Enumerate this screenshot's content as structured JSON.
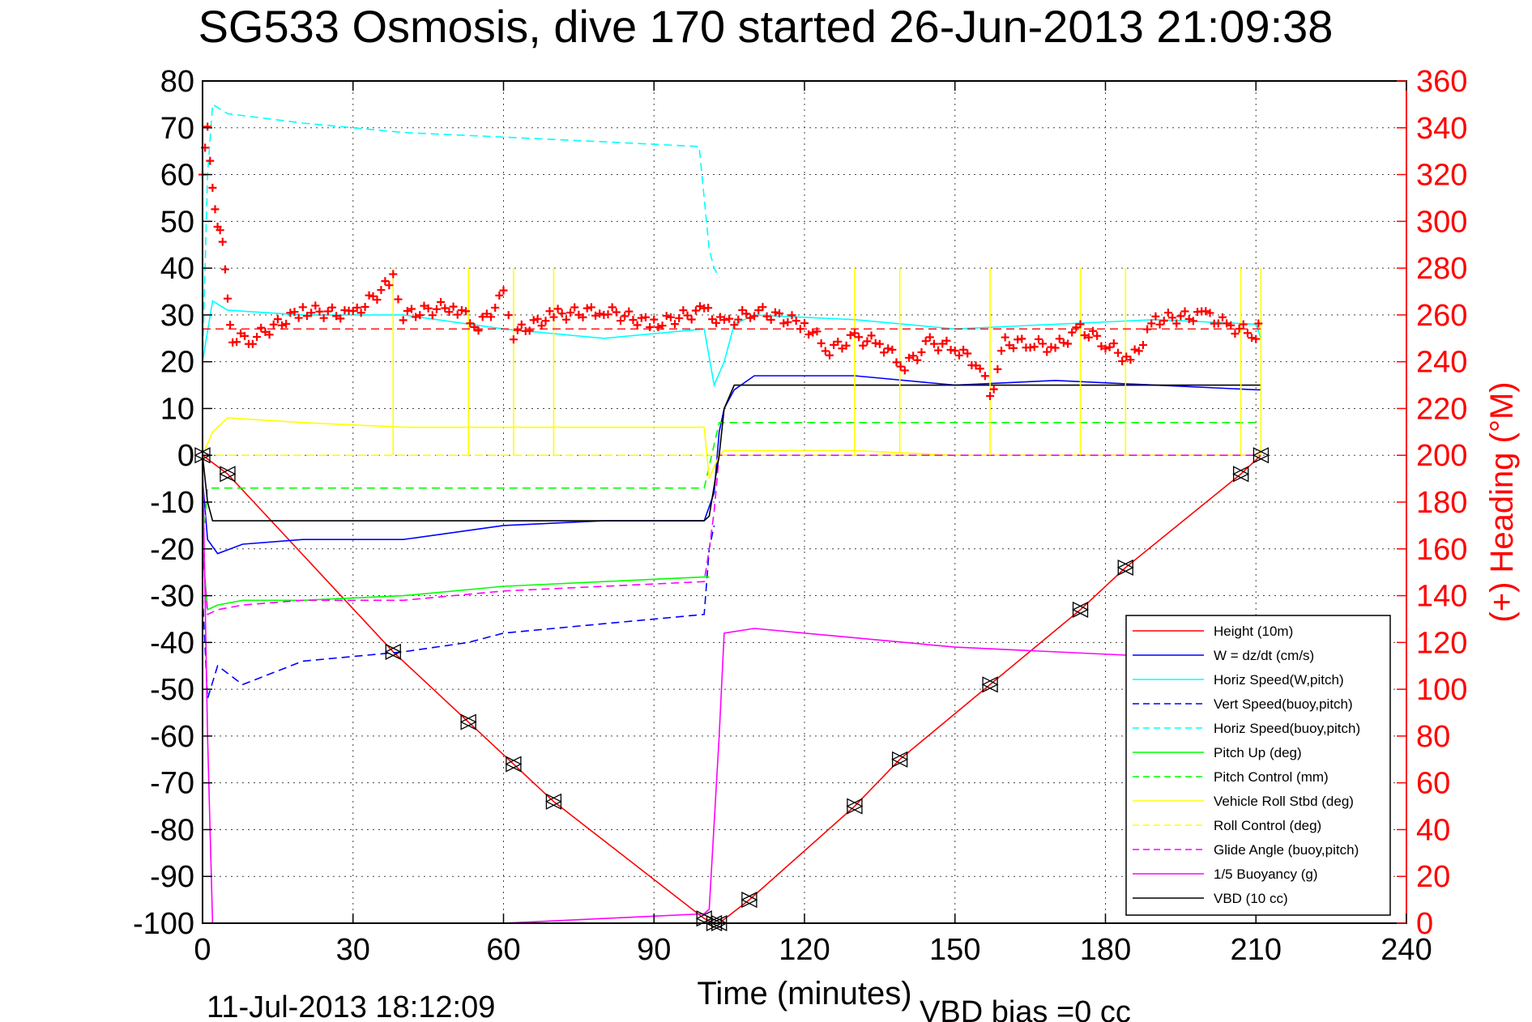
{
  "chart_data": {
    "type": "line",
    "title": "SG533 Osmosis, dive 170 started 26-Jun-2013 21:09:38",
    "xlabel": "Time (minutes)",
    "ylabel": "",
    "y2label": "(+) Heading (°M)",
    "footer_left": "11-Jul-2013 18:12:09",
    "footer_right": "VBD bias =0 cc",
    "xlim": [
      0,
      240
    ],
    "ylim": [
      -100,
      80
    ],
    "y2lim": [
      0,
      360
    ],
    "xticks": [
      "0",
      "30",
      "60",
      "90",
      "120",
      "150",
      "180",
      "210",
      "240"
    ],
    "yticks": [
      "80",
      "70",
      "60",
      "50",
      "40",
      "30",
      "20",
      "10",
      "0",
      "-10",
      "-20",
      "-30",
      "-40",
      "-50",
      "-60",
      "-70",
      "-80",
      "-90",
      "-100"
    ],
    "y2ticks": [
      "360",
      "340",
      "320",
      "300",
      "280",
      "260",
      "240",
      "220",
      "200",
      "180",
      "160",
      "140",
      "120",
      "100",
      "80",
      "60",
      "40",
      "20",
      "0"
    ],
    "grid": true,
    "legend_position": "bottom-right",
    "series": [
      {
        "name": "Height (10m)",
        "color": "#ff0000",
        "style": "solid",
        "x": [
          0,
          5,
          38,
          53,
          62,
          70,
          100,
          102,
          103,
          109,
          130,
          139,
          157,
          175,
          184,
          207,
          211
        ],
        "y": [
          0,
          -4,
          -42,
          -57,
          -66,
          -74,
          -99,
          -100,
          -100,
          -95,
          -75,
          -65,
          -49,
          -33,
          -24,
          -4,
          0
        ]
      },
      {
        "name": "W = dz/dt (cm/s)",
        "color": "#0000ff",
        "style": "solid",
        "x": [
          0,
          1,
          3,
          8,
          20,
          40,
          60,
          80,
          100,
          102,
          103,
          104,
          106,
          110,
          130,
          150,
          170,
          190,
          210,
          211
        ],
        "y": [
          -5,
          -18,
          -21,
          -19,
          -18,
          -18,
          -15,
          -14,
          -14,
          -8,
          5,
          10,
          14,
          17,
          17,
          15,
          16,
          15,
          14,
          14
        ]
      },
      {
        "name": "Horiz Speed(W,pitch)",
        "color": "#00ffff",
        "style": "solid",
        "x": [
          0,
          2,
          5,
          20,
          40,
          60,
          80,
          100,
          102,
          104,
          106,
          110,
          130,
          150,
          170,
          190,
          210,
          211
        ],
        "y": [
          20,
          33,
          31,
          30,
          30,
          27,
          25,
          27,
          15,
          20,
          28,
          30,
          29,
          27,
          28,
          29,
          28,
          25
        ]
      },
      {
        "name": "Vert Speed(buoy,pitch)",
        "color": "#0000ff",
        "style": "dashed",
        "x": [
          0,
          1,
          3,
          8,
          20,
          40,
          53,
          60,
          80,
          100,
          101,
          102
        ],
        "y": [
          -30,
          -52,
          -45,
          -49,
          -44,
          -42,
          -40,
          -38,
          -36,
          -34,
          -20,
          -15
        ]
      },
      {
        "name": "Horiz Speed(buoy,pitch)",
        "color": "#00ffff",
        "style": "dashed",
        "x": [
          0,
          1,
          2,
          5,
          20,
          40,
          60,
          80,
          99,
          100,
          101,
          102,
          103
        ],
        "y": [
          20,
          60,
          75,
          73,
          71,
          69,
          68,
          67,
          66,
          55,
          44,
          40,
          38
        ]
      },
      {
        "name": "Pitch Up (deg)",
        "color": "#00ff00",
        "style": "solid",
        "x": [
          0,
          1,
          3,
          8,
          20,
          40,
          60,
          80,
          100,
          101
        ],
        "y": [
          -20,
          -33,
          -32,
          -31,
          -31,
          -30,
          -28,
          -27,
          -26,
          -26
        ]
      },
      {
        "name": "Pitch Control (mm)",
        "color": "#00ff00",
        "style": "dashed",
        "x": [
          0,
          1,
          2,
          100,
          103,
          104,
          211
        ],
        "y": [
          -20,
          -7,
          -7,
          -7,
          7,
          7,
          7
        ]
      },
      {
        "name": "Vehicle Roll Stbd (deg)",
        "color": "#ffff00",
        "style": "solid",
        "x": [
          0,
          2,
          5,
          20,
          40,
          60,
          80,
          100,
          101,
          103,
          104,
          110,
          130,
          150,
          170,
          190,
          210,
          211
        ],
        "y": [
          0,
          5,
          8,
          7,
          6,
          6,
          6,
          6,
          -5,
          0,
          1,
          1,
          1,
          0,
          0,
          0,
          0,
          0
        ]
      },
      {
        "name": "Roll Control (deg)",
        "color": "#ffff00",
        "style": "dashed",
        "x": [
          0,
          211
        ],
        "y": [
          0,
          0
        ]
      },
      {
        "name": "Glide Angle (buoy,pitch)",
        "color": "#ff00ff",
        "style": "dashed",
        "x": [
          0,
          1,
          3,
          8,
          20,
          40,
          60,
          80,
          100,
          101,
          102,
          103,
          211
        ],
        "y": [
          -20,
          -34,
          -33,
          -32,
          -31,
          -31,
          -29,
          -28,
          -27,
          -20,
          -12,
          0,
          0
        ]
      },
      {
        "name": "1/5 Buoyancy (g)",
        "color": "#ff00ff",
        "style": "solid",
        "x": [
          0,
          1,
          2,
          60,
          80,
          100,
          101,
          103,
          104,
          110,
          150,
          190,
          211
        ],
        "y": [
          0,
          -60,
          -100,
          -100,
          -99,
          -98,
          -97,
          -60,
          -38,
          -37,
          -41,
          -43,
          -43
        ]
      },
      {
        "name": "VBD (10 cc)",
        "color": "#000000",
        "style": "solid",
        "x": [
          0,
          1,
          2,
          100,
          101,
          103,
          104,
          106,
          211
        ],
        "y": [
          0,
          -10,
          -14,
          -14,
          -13,
          0,
          10,
          15,
          15
        ]
      }
    ],
    "heading": {
      "name": "(+) Heading",
      "color": "#ff0000",
      "marker": "+",
      "axis": "right",
      "mean": 254,
      "x": [
        0,
        1,
        2,
        3,
        4,
        5,
        6,
        10,
        20,
        30,
        38,
        40,
        50,
        55,
        60,
        62,
        70,
        80,
        90,
        100,
        104,
        106,
        110,
        120,
        125,
        130,
        135,
        140,
        145,
        150,
        155,
        157,
        160,
        165,
        170,
        175,
        180,
        185,
        190,
        200,
        205,
        210,
        211
      ],
      "y": [
        320,
        338,
        315,
        300,
        290,
        265,
        250,
        250,
        262,
        260,
        275,
        260,
        264,
        255,
        268,
        252,
        260,
        262,
        256,
        262,
        256,
        258,
        262,
        256,
        245,
        250,
        248,
        238,
        248,
        246,
        238,
        225,
        248,
        248,
        246,
        254,
        248,
        240,
        258,
        260,
        255,
        252,
        258
      ]
    },
    "markers": {
      "shape": "triangle",
      "color": "#000000",
      "x": [
        0,
        5,
        38,
        53,
        62,
        70,
        100,
        102,
        103,
        109,
        130,
        139,
        157,
        175,
        184,
        207,
        211
      ],
      "y": [
        0,
        -4,
        -42,
        -57,
        -66,
        -74,
        -99,
        -100,
        -100,
        -95,
        -75,
        -65,
        -49,
        -33,
        -24,
        -4,
        0
      ]
    },
    "yellow_spikes_x": [
      38,
      53,
      62,
      70,
      130,
      139,
      157,
      175,
      184,
      207,
      211
    ]
  }
}
